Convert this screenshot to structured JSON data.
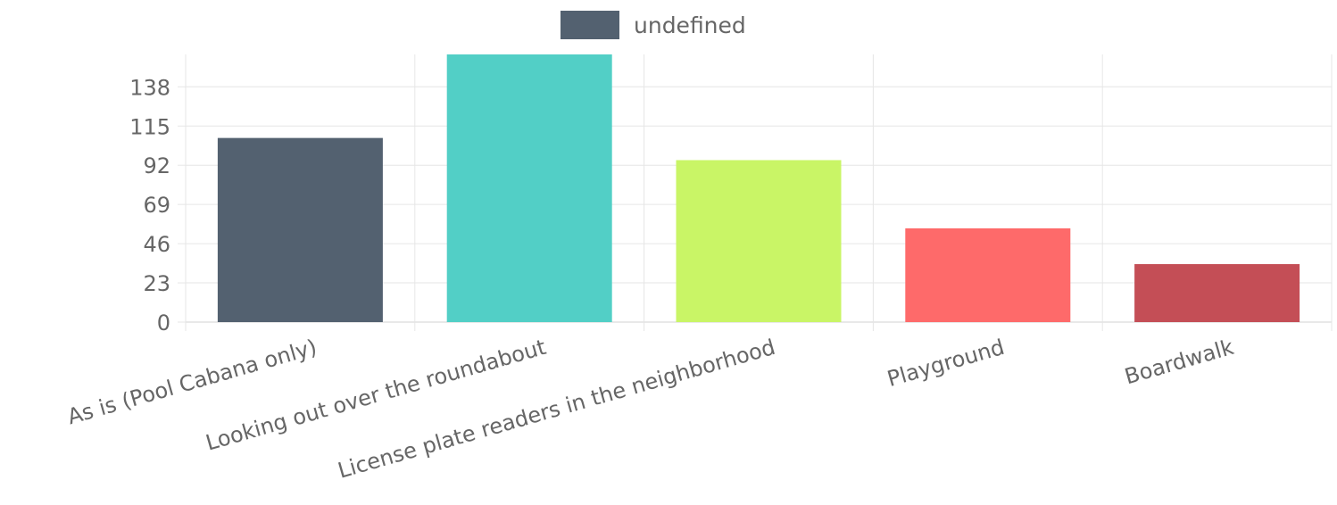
{
  "chart_data": {
    "type": "bar",
    "categories": [
      "As is (Pool Cabana only)",
      "Looking out over the roundabout",
      "License plate readers in the neighborhood",
      "Playground",
      "Boardwalk"
    ],
    "series": [
      {
        "name": "undefined",
        "values": [
          108,
          157,
          95,
          55,
          34
        ]
      }
    ],
    "colors": [
      "#536170",
      "#52cfc6",
      "#c9f566",
      "#fe6a6a",
      "#c44e56"
    ],
    "legend_color": "#536170",
    "y_ticks": [
      0,
      23,
      46,
      69,
      92,
      115,
      138
    ],
    "ylim": [
      0,
      157
    ],
    "grid": true,
    "legend_position": "top-center"
  }
}
